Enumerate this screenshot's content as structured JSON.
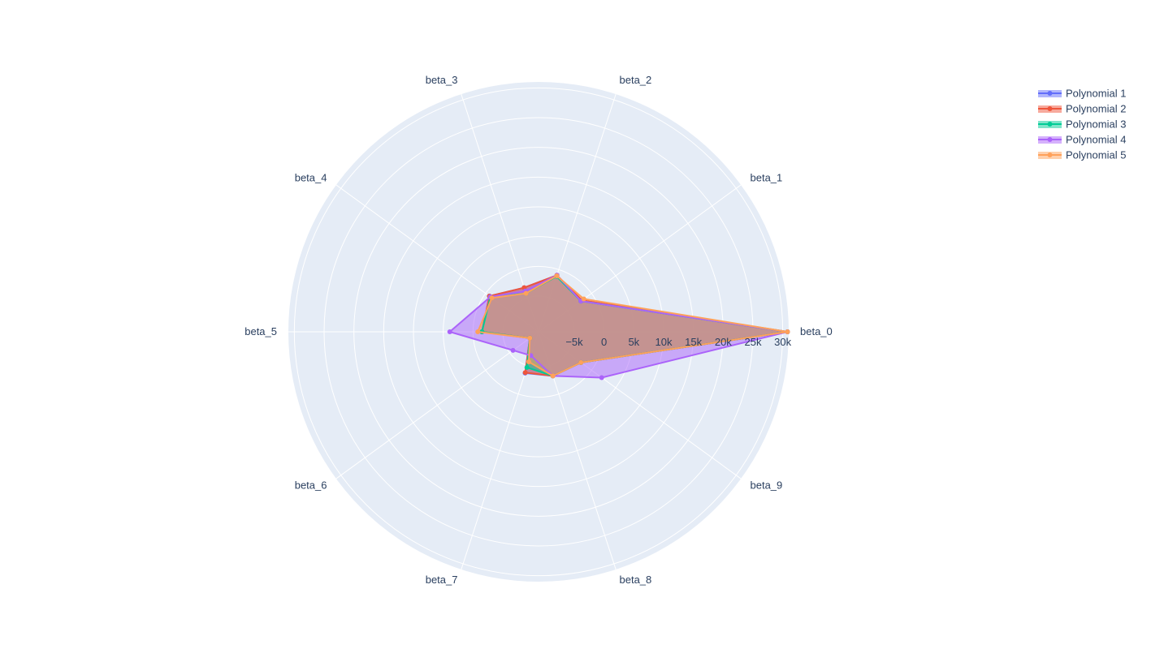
{
  "chart_data": {
    "type": "radar",
    "title": "",
    "categories": [
      "beta_0",
      "beta_1",
      "beta_2",
      "beta_3",
      "beta_4",
      "beta_5",
      "beta_6",
      "beta_7",
      "beta_8",
      "beta_9"
    ],
    "radial_range": [
      -11000,
      31000
    ],
    "radial_ticks": [
      -5000,
      0,
      5000,
      10000,
      15000,
      20000,
      25000,
      30000
    ],
    "radial_tick_labels": [
      "−5k",
      "0",
      "5k",
      "10k",
      "15k",
      "20k",
      "25k",
      "30k"
    ],
    "legend_position": "top-right",
    "series": [
      {
        "name": "Polynomial 1",
        "color": "#636efa",
        "values": [
          30800,
          -2200,
          -1000,
          -3200,
          -800,
          -1500,
          -9200,
          -3700,
          -3200,
          -2200
        ]
      },
      {
        "name": "Polynomial 2",
        "color": "#ef553b",
        "values": [
          30800,
          -2000,
          -1000,
          -3200,
          -800,
          -1500,
          -9200,
          -3800,
          -3200,
          -2200
        ]
      },
      {
        "name": "Polynomial 3",
        "color": "#00cc96",
        "values": [
          30800,
          -2200,
          -1200,
          -4200,
          -1000,
          -1500,
          -9200,
          -4700,
          -3200,
          -2200
        ]
      },
      {
        "name": "Polynomial 4",
        "color": "#ab63fa",
        "values": [
          30800,
          -2200,
          -1000,
          -3800,
          -1000,
          3900,
          -5700,
          -6800,
          -3200,
          2100
        ]
      },
      {
        "name": "Polynomial 5",
        "color": "#ffa15a",
        "values": [
          30800,
          -1600,
          -1100,
          -4200,
          -1300,
          -800,
          -9200,
          -5700,
          -3200,
          -2200
        ]
      }
    ]
  }
}
